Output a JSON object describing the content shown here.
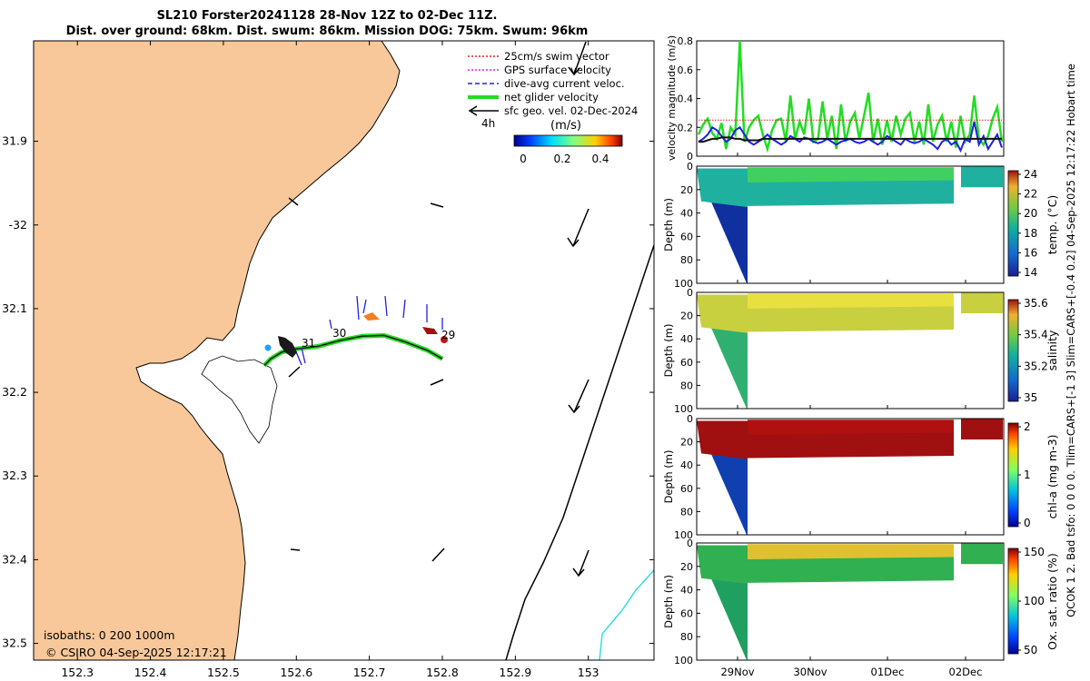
{
  "header": {
    "title_line1": "SL210 Forster20241128 28-Nov 12Z to 02-Dec 11Z.",
    "title_line2": "Dist. over ground: 68km. Dist. swum: 86km. Mission DOG: 75km. Swum: 96km"
  },
  "side_note": "QCOK 1 2. Bad tsfo: 0 0 0 0. Tlim=CARS+[-1 3] Slim=CARS+[-0.4 0.2] 04-Sep-2025 12:17:22 Hobart time",
  "map": {
    "legend": [
      {
        "label": "25cm/s swim vector",
        "color": "#e02020",
        "style": "dotted"
      },
      {
        "label": "GPS surface velocity",
        "color": "#e020e0",
        "style": "dotted"
      },
      {
        "label": "dive-avg current veloc.",
        "color": "#2020e0",
        "style": "dashed"
      },
      {
        "label": "net glider velocity",
        "color": "#22dd22",
        "style": "solid"
      },
      {
        "label": "sfc geo. vel. 02-Dec-2024",
        "color": "#000000",
        "style": "solid"
      }
    ],
    "legend_sub": "4h",
    "colorbar_label": "(m/s)",
    "colorbar_ticks": [
      "0",
      "0.2",
      "0.4"
    ],
    "isobaths": "isobaths: 0   200  1000m",
    "copyright": "© CSIRO 04-Sep-2025 12:17:21",
    "track_labels": [
      "29",
      "30",
      "31"
    ],
    "colors": {
      "land": "#f8c89a",
      "sea": "#ffffff",
      "track": "#22dd22",
      "current": "#2020e0",
      "isobath_1000": "#33dddd"
    }
  },
  "chart_data": [
    {
      "type": "map",
      "x_ticks": [
        152.3,
        152.4,
        152.5,
        152.6,
        152.7,
        152.8,
        152.9,
        153
      ],
      "x_tick_labels": [
        "152.3",
        "152.4",
        "152.5",
        "152.6",
        "152.7",
        "152.8",
        "152.9",
        "153"
      ],
      "y_ticks": [
        31.9,
        32,
        32.1,
        32.2,
        32.3,
        32.4,
        32.5
      ],
      "y_tick_labels": [
        "31.9",
        "-32",
        "32.1",
        "32.2",
        "32.3",
        "32.4",
        "32.5"
      ],
      "xlim": [
        152.24,
        153.09
      ],
      "ylim": [
        31.78,
        32.52
      ],
      "track": [
        [
          152.556,
          32.168
        ],
        [
          152.565,
          32.16
        ],
        [
          152.58,
          32.152
        ],
        [
          152.6,
          32.148
        ],
        [
          152.63,
          32.145
        ],
        [
          152.66,
          32.138
        ],
        [
          152.69,
          32.133
        ],
        [
          152.72,
          32.132
        ],
        [
          152.75,
          32.14
        ],
        [
          152.78,
          32.15
        ],
        [
          152.8,
          32.16
        ]
      ]
    },
    {
      "type": "line",
      "ylabel": "velocity magnitude (m/s)",
      "ylim": [
        0,
        0.8
      ],
      "y_ticks": [
        0,
        0.2,
        0.4,
        0.6,
        0.8
      ],
      "x_tick_labels": [
        "29Nov",
        "30Nov",
        "01Dec",
        "02Dec"
      ],
      "series": [
        {
          "color": "#22dd22",
          "values": [
            0.15,
            0.22,
            0.26,
            0.16,
            0.12,
            0.23,
            0.05,
            0.2,
            0.15,
            0.8,
            0.1,
            0.2,
            0.25,
            0.28,
            0.15,
            0.05,
            0.18,
            0.25,
            0.26,
            0.1,
            0.42,
            0.12,
            0.24,
            0.15,
            0.4,
            0.1,
            0.12,
            0.38,
            0.12,
            0.28,
            0.05,
            0.36,
            0.1,
            0.24,
            0.3,
            0.12,
            0.28,
            0.44,
            0.1,
            0.26,
            0.08,
            0.25,
            0.1,
            0.28,
            0.15,
            0.26,
            0.3,
            0.1,
            0.24,
            0.08,
            0.36,
            0.1,
            0.22,
            0.28,
            0.1,
            0.24,
            0.06,
            0.28,
            0.1,
            0.15,
            0.42,
            0.12,
            0.08,
            0.14,
            0.26,
            0.34,
            0.1
          ]
        },
        {
          "color": "#2020e0",
          "values": [
            0.1,
            0.12,
            0.15,
            0.2,
            0.18,
            0.14,
            0.1,
            0.12,
            0.18,
            0.2,
            0.15,
            0.1,
            0.08,
            0.1,
            0.12,
            0.15,
            0.12,
            0.1,
            0.08,
            0.1,
            0.14,
            0.12,
            0.1,
            0.13,
            0.12,
            0.1,
            0.09,
            0.1,
            0.12,
            0.1,
            0.08,
            0.1,
            0.11,
            0.12,
            0.1,
            0.09,
            0.1,
            0.12,
            0.1,
            0.08,
            0.1,
            0.14,
            0.12,
            0.1,
            0.08,
            0.12,
            0.1,
            0.09,
            0.1,
            0.12,
            0.1,
            0.08,
            0.05,
            0.1,
            0.12,
            0.08,
            0.1,
            0.04,
            0.12,
            0.1,
            0.24,
            0.08,
            0.14,
            0.05,
            0.1,
            0.15,
            0.06
          ]
        },
        {
          "color": "#111111",
          "values": [
            0.1,
            0.1,
            0.11,
            0.12,
            0.12,
            0.13,
            0.13,
            0.13,
            0.12,
            0.12,
            0.11,
            0.11,
            0.11,
            0.11,
            0.12,
            0.12,
            0.12,
            0.12,
            0.12,
            0.12,
            0.12,
            0.12,
            0.12,
            0.12,
            0.12,
            0.12,
            0.12,
            0.12,
            0.12,
            0.12,
            0.12,
            0.12,
            0.12,
            0.12,
            0.12,
            0.12,
            0.12,
            0.12,
            0.12,
            0.12,
            0.12,
            0.12,
            0.12,
            0.12,
            0.12,
            0.12,
            0.12,
            0.12,
            0.12,
            0.12,
            0.12,
            0.12,
            0.12,
            0.12,
            0.12,
            0.12,
            0.12,
            0.12,
            0.12,
            0.12,
            0.12,
            0.12,
            0.12,
            0.12,
            0.12,
            0.12,
            0.12
          ]
        },
        {
          "color": "#e02020",
          "style": "dotted",
          "values": [
            0.25,
            0.25,
            0.25,
            0.25,
            0.25,
            0.25,
            0.25,
            0.25,
            0.25,
            0.25,
            0.25,
            0.25,
            0.25,
            0.25,
            0.25,
            0.25,
            0.25,
            0.25,
            0.25,
            0.25,
            0.25,
            0.25,
            0.25,
            0.25,
            0.25,
            0.25,
            0.25,
            0.25,
            0.25,
            0.25,
            0.25,
            0.25,
            0.25,
            0.25,
            0.25,
            0.25,
            0.25,
            0.25,
            0.25,
            0.25,
            0.25,
            0.25,
            0.25,
            0.25,
            0.25,
            0.25,
            0.25,
            0.25,
            0.25,
            0.25,
            0.25,
            0.25,
            0.25,
            0.25,
            0.25,
            0.25,
            0.25,
            0.25,
            0.25,
            0.25,
            0.25,
            0.25,
            0.25,
            0.25,
            0.25,
            0.25,
            0.25
          ]
        }
      ]
    },
    {
      "type": "heatmap",
      "ylabel": "Depth (m)",
      "cbar_label": "temp. (°C)",
      "cbar_ticks": [
        "24",
        "22",
        "20",
        "18",
        "16",
        "14"
      ],
      "y_ticks": [
        "0",
        "20",
        "40",
        "60",
        "80",
        "100"
      ]
    },
    {
      "type": "heatmap",
      "ylabel": "Depth (m)",
      "cbar_label": "salinity",
      "cbar_ticks": [
        "35.6",
        "35.4",
        "35.2",
        "35"
      ],
      "y_ticks": [
        "0",
        "20",
        "40",
        "60",
        "80",
        "100"
      ]
    },
    {
      "type": "heatmap",
      "ylabel": "Depth (m)",
      "cbar_label": "chl-a (mg m-3)",
      "cbar_ticks": [
        "2",
        "1",
        "0"
      ],
      "y_ticks": [
        "0",
        "20",
        "40",
        "60",
        "80",
        "100"
      ]
    },
    {
      "type": "heatmap",
      "ylabel": "Depth (m)",
      "cbar_label": "Ox. sat. ratio (%)",
      "cbar_ticks": [
        "150",
        "100",
        "50"
      ],
      "y_ticks": [
        "0",
        "20",
        "40",
        "60",
        "80",
        "100"
      ],
      "x_tick_labels": [
        "29Nov",
        "30Nov",
        "01Dec",
        "02Dec"
      ]
    }
  ]
}
